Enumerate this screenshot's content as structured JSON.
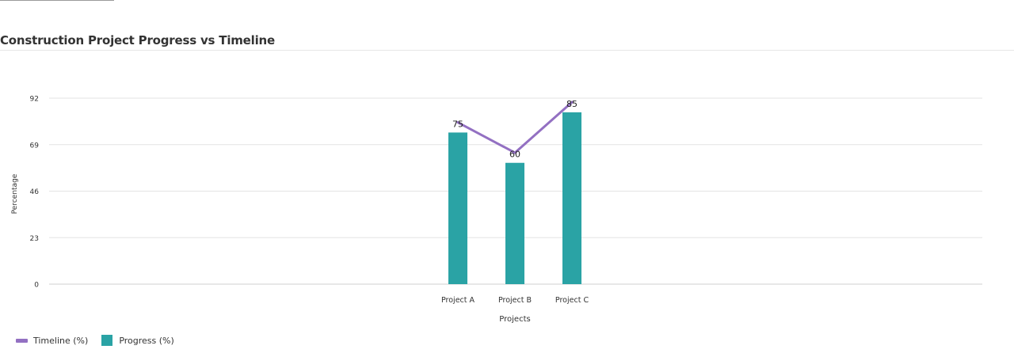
{
  "chart_data": {
    "type": "bar",
    "title": "Construction Project Progress vs Timeline",
    "xlabel": "Projects",
    "ylabel": "Percentage",
    "categories": [
      "Project A",
      "Project B",
      "Project C"
    ],
    "ylim": [
      0,
      92
    ],
    "yticks": [
      0,
      23,
      46,
      69,
      92
    ],
    "grid": true,
    "legend_position": "bottom-left",
    "series": [
      {
        "name": "Progress (%)",
        "type": "bar",
        "color": "#2aa3a5",
        "values": [
          75,
          60,
          85
        ]
      },
      {
        "name": "Timeline (%)",
        "type": "line",
        "color": "#9370c2",
        "values": [
          80,
          65,
          90
        ]
      }
    ],
    "data_labels": [
      "75",
      "60",
      "85"
    ]
  }
}
